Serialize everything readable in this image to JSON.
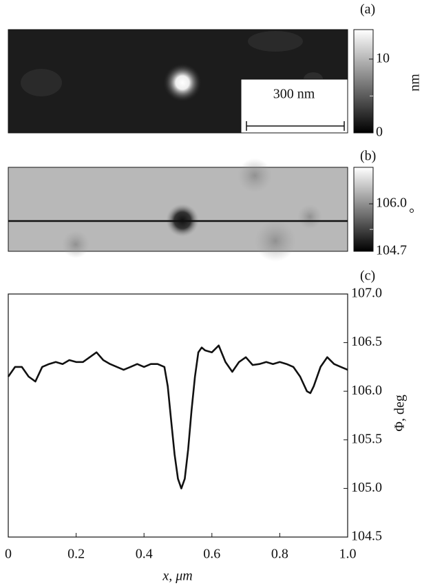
{
  "panels": [
    {
      "label": "(a)",
      "unit": "nm",
      "clim": [
        0,
        14
      ],
      "ticks": [
        0,
        10
      ],
      "minor_ticks": [
        5
      ],
      "scale_bar": "300 nm"
    },
    {
      "label": "(b)",
      "unit": "°",
      "clim": [
        104.7,
        107.0
      ],
      "ticks": [
        {
          "value": 104.7,
          "label": "104.7"
        },
        {
          "value": 106.0,
          "label": "106.0"
        }
      ],
      "minor_ticks": [
        105.3
      ]
    },
    {
      "label": "(c)"
    }
  ],
  "chart_data": {
    "type": "line",
    "xlabel": "x, μm",
    "ylabel": "Φ, deg",
    "xlim": [
      0,
      1
    ],
    "ylim": [
      104.5,
      107
    ],
    "xticks": [
      0,
      0.2,
      0.4,
      0.6,
      0.8,
      {
        "value": 1,
        "label": "1.0"
      }
    ],
    "yticks": [
      104.5,
      {
        "value": 105,
        "label": "105.0"
      },
      105.5,
      {
        "value": 106,
        "label": "106.0"
      },
      106.5,
      {
        "value": 107,
        "label": "107.0"
      }
    ],
    "color": "#111111",
    "x": [
      0,
      0.02,
      0.04,
      0.06,
      0.08,
      0.1,
      0.12,
      0.14,
      0.16,
      0.18,
      0.2,
      0.22,
      0.24,
      0.26,
      0.28,
      0.3,
      0.32,
      0.34,
      0.36,
      0.38,
      0.4,
      0.42,
      0.44,
      0.46,
      0.47,
      0.48,
      0.49,
      0.5,
      0.51,
      0.52,
      0.53,
      0.54,
      0.55,
      0.56,
      0.57,
      0.58,
      0.6,
      0.62,
      0.64,
      0.66,
      0.68,
      0.7,
      0.72,
      0.74,
      0.76,
      0.78,
      0.8,
      0.82,
      0.84,
      0.86,
      0.88,
      0.89,
      0.9,
      0.92,
      0.94,
      0.96,
      0.98,
      1.0
    ],
    "values": [
      106.15,
      106.25,
      106.25,
      106.15,
      106.1,
      106.25,
      106.28,
      106.3,
      106.28,
      106.32,
      106.3,
      106.3,
      106.35,
      106.4,
      106.32,
      106.28,
      106.25,
      106.22,
      106.25,
      106.28,
      106.25,
      106.28,
      106.28,
      106.25,
      106.05,
      105.7,
      105.35,
      105.1,
      105.0,
      105.1,
      105.4,
      105.8,
      106.15,
      106.4,
      106.45,
      106.42,
      106.4,
      106.47,
      106.3,
      106.2,
      106.3,
      106.35,
      106.27,
      106.28,
      106.3,
      106.28,
      106.3,
      106.28,
      106.25,
      106.15,
      106.0,
      105.98,
      106.05,
      106.25,
      106.35,
      106.28,
      106.25,
      106.22
    ]
  }
}
